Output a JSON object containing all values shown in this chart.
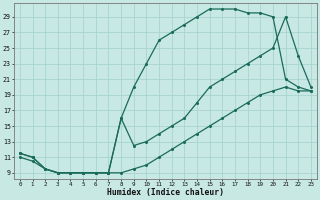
{
  "xlabel": "Humidex (Indice chaleur)",
  "bg_color": "#c8e8e4",
  "grid_color": "#a8d4d0",
  "line_color": "#1a6b5a",
  "xlim": [
    -0.5,
    23.5
  ],
  "ylim": [
    8.2,
    30.8
  ],
  "xticks": [
    0,
    1,
    2,
    3,
    4,
    5,
    6,
    7,
    8,
    9,
    10,
    11,
    12,
    13,
    14,
    15,
    16,
    17,
    18,
    19,
    20,
    21,
    22,
    23
  ],
  "yticks": [
    9,
    11,
    13,
    15,
    17,
    19,
    21,
    23,
    25,
    27,
    29
  ],
  "line1_x": [
    0,
    1,
    2,
    3,
    4,
    5,
    6,
    7,
    8,
    9,
    10,
    11,
    12,
    13,
    14,
    15,
    16,
    17,
    18,
    19,
    20,
    21,
    22,
    23
  ],
  "line1_y": [
    11,
    10.5,
    9.5,
    9,
    9,
    9,
    9,
    9,
    9,
    9.5,
    10,
    11,
    12,
    13,
    14,
    15,
    16,
    17,
    18,
    19,
    19.5,
    20,
    19.5,
    19.5
  ],
  "line2_x": [
    0,
    1,
    2,
    3,
    4,
    5,
    6,
    7,
    8,
    9,
    10,
    11,
    12,
    13,
    14,
    15,
    16,
    17,
    18,
    19,
    20,
    21,
    22,
    23
  ],
  "line2_y": [
    11.5,
    11,
    9.5,
    9,
    9,
    9,
    9,
    9,
    16,
    20,
    23,
    26,
    27,
    28,
    29,
    30,
    30,
    30,
    29.5,
    29.5,
    29,
    21,
    20,
    19.5
  ],
  "line3_x": [
    0,
    1,
    2,
    3,
    4,
    5,
    6,
    7,
    8,
    9,
    10,
    11,
    12,
    13,
    14,
    15,
    16,
    17,
    18,
    19,
    20,
    21,
    22,
    23
  ],
  "line3_y": [
    11.5,
    11,
    9.5,
    9,
    9,
    9,
    9,
    9,
    16,
    12.5,
    13,
    14,
    15,
    16,
    18,
    20,
    21,
    22,
    23,
    24,
    25,
    29,
    24,
    20
  ]
}
